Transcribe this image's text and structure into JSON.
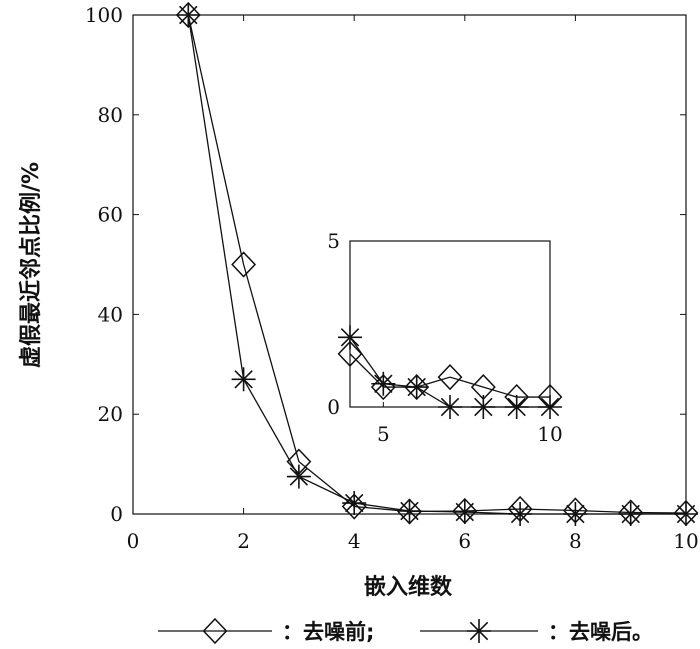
{
  "chart_data": [
    {
      "type": "line",
      "xlabel": "嵌入维数",
      "ylabel": "虚假最近邻点比例/%",
      "xlim": [
        0,
        10
      ],
      "ylim": [
        0,
        100
      ],
      "xticks": [
        "0",
        "2",
        "4",
        "6",
        "8",
        "10"
      ],
      "yticks": [
        "0",
        "20",
        "40",
        "60",
        "80",
        "100"
      ],
      "grid": false,
      "legend_position": "bottom",
      "series": [
        {
          "name": "：去噪前;",
          "marker": "diamond",
          "x": [
            1,
            2,
            3,
            4,
            5,
            6,
            7,
            8,
            9,
            10
          ],
          "y": [
            100,
            50,
            10.5,
            1.5,
            0.5,
            0.6,
            1.0,
            0.7,
            0.3,
            0.2
          ]
        },
        {
          "name": "：去噪后。",
          "marker": "asterisk",
          "x": [
            1,
            2,
            3,
            4,
            5,
            6,
            7,
            8,
            9,
            10
          ],
          "y": [
            100,
            27,
            7.5,
            2.2,
            0.6,
            0.4,
            0.0,
            0.0,
            0.0,
            0.0
          ]
        }
      ]
    },
    {
      "type": "line",
      "inset": true,
      "xlim": [
        4,
        10
      ],
      "ylim": [
        0,
        5
      ],
      "xticks": [
        "5",
        "10"
      ],
      "yticks": [
        "0",
        "5"
      ],
      "series": [
        {
          "name": "去噪前",
          "marker": "diamond",
          "x": [
            4,
            5,
            6,
            7,
            8,
            9,
            10
          ],
          "y": [
            1.6,
            0.6,
            0.6,
            0.9,
            0.6,
            0.3,
            0.3
          ]
        },
        {
          "name": "去噪后",
          "marker": "asterisk",
          "x": [
            4,
            5,
            6,
            7,
            8,
            9,
            10
          ],
          "y": [
            2.1,
            0.7,
            0.6,
            0.0,
            0.0,
            0.0,
            0.0
          ]
        }
      ]
    }
  ]
}
